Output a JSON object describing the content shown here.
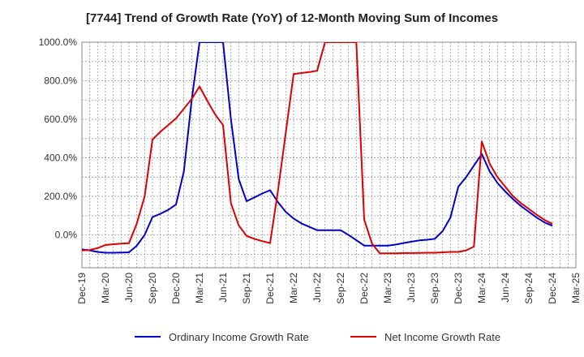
{
  "chart_data": {
    "type": "line",
    "title": "[7744]  Trend of Growth Rate (YoY) of 12-Month Moving Sum of Incomes",
    "xlabel": "",
    "ylabel": "",
    "ylim": [
      -170,
      1000
    ],
    "y_ticks": [
      0,
      200,
      400,
      600,
      800,
      1000
    ],
    "y_tick_labels": [
      "0.0%",
      "200.0%",
      "400.0%",
      "600.0%",
      "800.0%",
      "1000.0%"
    ],
    "x_tick_labels": [
      "Dec-19",
      "Mar-20",
      "Jun-20",
      "Sep-20",
      "Dec-20",
      "Mar-21",
      "Jun-21",
      "Sep-21",
      "Dec-21",
      "Mar-22",
      "Jun-22",
      "Sep-22",
      "Dec-22",
      "Mar-23",
      "Jun-23",
      "Sep-23",
      "Dec-23",
      "Mar-24",
      "Jun-24",
      "Sep-24",
      "Dec-24",
      "Mar-25"
    ],
    "grid": true,
    "legend_position": "bottom",
    "series": [
      {
        "name": "Ordinary Income Growth Rate",
        "color": "#0000cc",
        "points": [
          [
            "Dec-19",
            -75
          ],
          [
            "Jan-20",
            -80
          ],
          [
            "Feb-20",
            -88
          ],
          [
            "Mar-20",
            -92
          ],
          [
            "Apr-20",
            -92
          ],
          [
            "May-20",
            -91
          ],
          [
            "Jun-20",
            -90
          ],
          [
            "Jul-20",
            -55
          ],
          [
            "Aug-20",
            0
          ],
          [
            "Sep-20",
            93
          ],
          [
            "Oct-20",
            110
          ],
          [
            "Nov-20",
            130
          ],
          [
            "Dec-20",
            158
          ],
          [
            "Jan-21",
            330
          ],
          [
            "Feb-21",
            700
          ],
          [
            "Mar-21",
            1000
          ],
          [
            "Jun-21",
            1000
          ],
          [
            "Jul-21",
            600
          ],
          [
            "Aug-21",
            290
          ],
          [
            "Sep-21",
            175
          ],
          [
            "Oct-21",
            195
          ],
          [
            "Nov-21",
            215
          ],
          [
            "Dec-21",
            232
          ],
          [
            "Jan-22",
            170
          ],
          [
            "Feb-22",
            120
          ],
          [
            "Mar-22",
            85
          ],
          [
            "Apr-22",
            60
          ],
          [
            "May-22",
            42
          ],
          [
            "Jun-22",
            25
          ],
          [
            "Jul-22",
            25
          ],
          [
            "Aug-22",
            25
          ],
          [
            "Sep-22",
            25
          ],
          [
            "Oct-22",
            0
          ],
          [
            "Nov-22",
            -27
          ],
          [
            "Dec-22",
            -55
          ],
          [
            "Jan-23",
            -55
          ],
          [
            "Feb-23",
            -55
          ],
          [
            "Mar-23",
            -55
          ],
          [
            "Apr-23",
            -50
          ],
          [
            "May-23",
            -42
          ],
          [
            "Jun-23",
            -35
          ],
          [
            "Jul-23",
            -28
          ],
          [
            "Aug-23",
            -25
          ],
          [
            "Sep-23",
            -20
          ],
          [
            "Oct-23",
            20
          ],
          [
            "Nov-23",
            90
          ],
          [
            "Dec-23",
            250
          ],
          [
            "Jan-24",
            300
          ],
          [
            "Feb-24",
            360
          ],
          [
            "Mar-24",
            420
          ],
          [
            "Apr-24",
            330
          ],
          [
            "May-24",
            270
          ],
          [
            "Jun-24",
            225
          ],
          [
            "Jul-24",
            185
          ],
          [
            "Aug-24",
            150
          ],
          [
            "Sep-24",
            120
          ],
          [
            "Oct-24",
            90
          ],
          [
            "Nov-24",
            65
          ],
          [
            "Dec-24",
            48
          ]
        ]
      },
      {
        "name": "Net Income Growth Rate",
        "color": "#dd0000",
        "points": [
          [
            "Dec-19",
            -80
          ],
          [
            "Jan-20",
            -78
          ],
          [
            "Feb-20",
            -68
          ],
          [
            "Mar-20",
            -52
          ],
          [
            "Apr-20",
            -48
          ],
          [
            "May-20",
            -45
          ],
          [
            "Jun-20",
            -43
          ],
          [
            "Jul-20",
            60
          ],
          [
            "Aug-20",
            200
          ],
          [
            "Sep-20",
            495
          ],
          [
            "Oct-20",
            535
          ],
          [
            "Nov-20",
            570
          ],
          [
            "Dec-20",
            605
          ],
          [
            "Jan-21",
            655
          ],
          [
            "Feb-21",
            705
          ],
          [
            "Mar-21",
            770
          ],
          [
            "Apr-21",
            695
          ],
          [
            "May-21",
            625
          ],
          [
            "Jun-21",
            570
          ],
          [
            "Jul-21",
            165
          ],
          [
            "Aug-21",
            50
          ],
          [
            "Sep-21",
            -5
          ],
          [
            "Oct-21",
            -20
          ],
          [
            "Nov-21",
            -32
          ],
          [
            "Dec-21",
            -42
          ],
          [
            "Jan-22",
            230
          ],
          [
            "Feb-22",
            530
          ],
          [
            "Mar-22",
            835
          ],
          [
            "Apr-22",
            840
          ],
          [
            "May-22",
            845
          ],
          [
            "Jun-22",
            852
          ],
          [
            "Jul-22",
            1000
          ],
          [
            "Nov-22",
            1000
          ],
          [
            "Dec-22",
            80
          ],
          [
            "Jan-23",
            -45
          ],
          [
            "Feb-23",
            -95
          ],
          [
            "Mar-23",
            -95
          ],
          [
            "Apr-23",
            -95
          ],
          [
            "May-23",
            -94
          ],
          [
            "Jun-23",
            -94
          ],
          [
            "Jul-23",
            -93
          ],
          [
            "Aug-23",
            -92
          ],
          [
            "Sep-23",
            -92
          ],
          [
            "Oct-23",
            -90
          ],
          [
            "Nov-23",
            -88
          ],
          [
            "Dec-23",
            -88
          ],
          [
            "Jan-24",
            -80
          ],
          [
            "Feb-24",
            -60
          ],
          [
            "Mar-24",
            485
          ],
          [
            "Apr-24",
            370
          ],
          [
            "May-24",
            300
          ],
          [
            "Jun-24",
            250
          ],
          [
            "Jul-24",
            200
          ],
          [
            "Aug-24",
            165
          ],
          [
            "Sep-24",
            135
          ],
          [
            "Oct-24",
            105
          ],
          [
            "Nov-24",
            78
          ],
          [
            "Dec-24",
            58
          ]
        ]
      }
    ]
  }
}
